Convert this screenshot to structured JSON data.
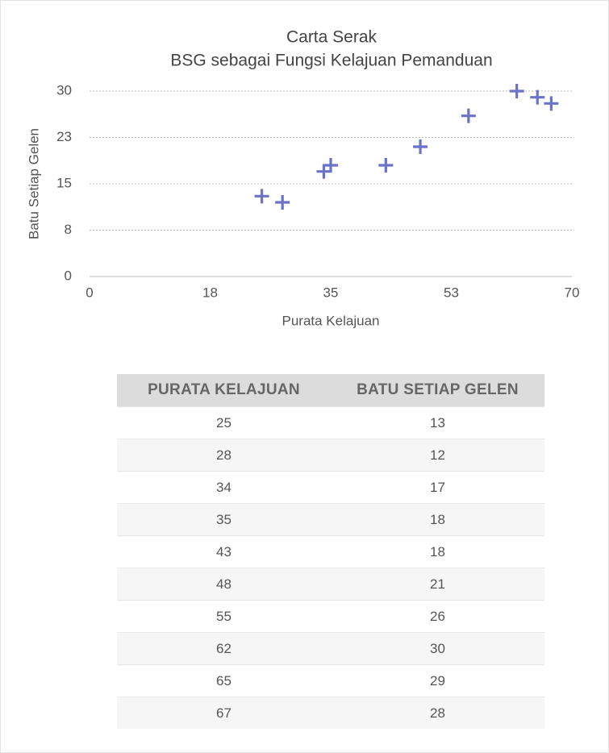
{
  "chart_data": {
    "type": "scatter",
    "title": "Carta Serak",
    "subtitle": "BSG sebagai Fungsi Kelajuan Pemanduan",
    "x_label": "Purata Kelajuan",
    "y_label": "Batu Setiap Gelen",
    "x": [
      25,
      28,
      34,
      35,
      43,
      48,
      55,
      62,
      65,
      67
    ],
    "y": [
      13,
      12,
      17,
      18,
      18,
      21,
      26,
      30,
      29,
      28
    ],
    "color": "#6b72c9",
    "xlim": [
      0,
      70
    ],
    "xticks": [
      0,
      {
        "value": 17.5,
        "label": "18"
      },
      35,
      {
        "value": 52.5,
        "label": "53"
      },
      70
    ],
    "ylim": [
      0,
      30
    ],
    "yticks": [
      0,
      {
        "value": 7.5,
        "label": "8"
      },
      15,
      {
        "value": 22.5,
        "label": "23"
      },
      30
    ],
    "grid": true
  },
  "table": {
    "columns": [
      "PURATA KELAJUAN",
      "BATU SETIAP GELEN"
    ],
    "rows": [
      [
        "25",
        "13"
      ],
      [
        "28",
        "12"
      ],
      [
        "34",
        "17"
      ],
      [
        "35",
        "18"
      ],
      [
        "43",
        "18"
      ],
      [
        "48",
        "21"
      ],
      [
        "55",
        "26"
      ],
      [
        "62",
        "30"
      ],
      [
        "65",
        "29"
      ],
      [
        "67",
        "28"
      ]
    ]
  }
}
